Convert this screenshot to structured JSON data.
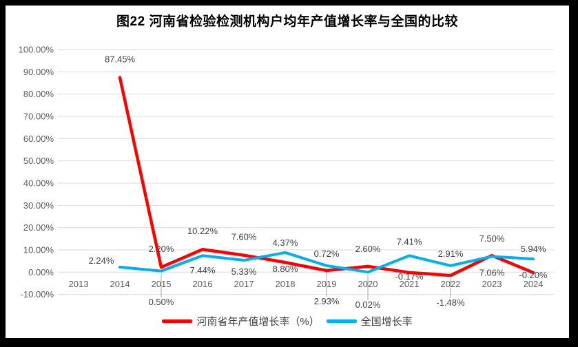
{
  "title": "图22  河南省检验检测机构户均年产值增长率与全国的比较",
  "colors": {
    "henan_line": "#FF0000",
    "national_line": "#00B0F0",
    "gridline": "#D9D9D9",
    "axis_text": "#595959",
    "data_label_text": "#404040",
    "leader_line": "#A6A6A6",
    "frame": "#000000",
    "chart_background": "#FFFFFF"
  },
  "legend": [
    {
      "label": "河南省年产值增长率（%）",
      "color": "#FF0000"
    },
    {
      "label": "全国增长率",
      "color": "#00B0F0"
    }
  ],
  "chart_data": {
    "type": "line",
    "title": "图22  河南省检验检测机构户均年产值增长率与全国的比较",
    "categories": [
      "2013",
      "2014",
      "2015",
      "2016",
      "2017",
      "2018",
      "2019",
      "2020",
      "2021",
      "2022",
      "2023",
      "2024"
    ],
    "ylim": [
      -10,
      100
    ],
    "grid": true,
    "legend_position": "bottom",
    "y_tick_values": [
      100,
      90,
      80,
      70,
      60,
      50,
      40,
      30,
      20,
      10,
      0,
      -10
    ],
    "y_tick_labels": [
      "100.00%",
      "90.00%",
      "80.00%",
      "70.00%",
      "60.00%",
      "50.00%",
      "40.00%",
      "30.00%",
      "20.00%",
      "10.00%",
      "0.00%",
      "-10.00%"
    ],
    "series": [
      {
        "name": "河南省年产值增长率（%）",
        "color": "#FF0000",
        "values": [
          null,
          87.45,
          2.2,
          10.22,
          7.6,
          4.37,
          0.72,
          2.6,
          -0.17,
          -1.48,
          7.5,
          -0.2
        ],
        "labels": [
          null,
          {
            "text": "87.45%",
            "dy": -22
          },
          {
            "text": "2.20%",
            "dy": -22
          },
          {
            "text": "10.22%",
            "dy": -22
          },
          {
            "text": "7.60%",
            "dy": -22
          },
          {
            "text": "4.37%",
            "dy": -24
          },
          {
            "text": "0.72%",
            "dy": -20
          },
          {
            "text": "2.60%",
            "dy": -21
          },
          {
            "text": "-0.17%",
            "dy": 10
          },
          {
            "text": "-1.48%",
            "abs_y": 444,
            "leader": true
          },
          {
            "text": "7.50%",
            "dy": -20
          },
          {
            "text": "-0.20%",
            "dy": 8
          }
        ]
      },
      {
        "name": "全国增长率",
        "color": "#00B0F0",
        "values": [
          null,
          2.24,
          0.5,
          7.44,
          5.33,
          8.8,
          2.93,
          0.02,
          7.41,
          2.91,
          7.06,
          5.94
        ],
        "labels": [
          null,
          {
            "text": "2.24%",
            "dx": -27,
            "dy": -5
          },
          {
            "text": "0.50%",
            "abs_y": 443,
            "leader": true
          },
          {
            "text": "7.44%",
            "dy": 26
          },
          {
            "text": "5.33%",
            "dy": 21
          },
          {
            "text": "8.80%",
            "dy": 28
          },
          {
            "text": "2.93%",
            "abs_y": 442,
            "leader": true
          },
          {
            "text": "0.02%",
            "abs_y": 447,
            "leader": true
          },
          {
            "text": "7.41%",
            "dy": -16
          },
          {
            "text": "2.91%",
            "dy": -13
          },
          {
            "text": "7.06%",
            "dy": 28
          },
          {
            "text": "5.94%",
            "dy": -10
          }
        ]
      }
    ]
  }
}
